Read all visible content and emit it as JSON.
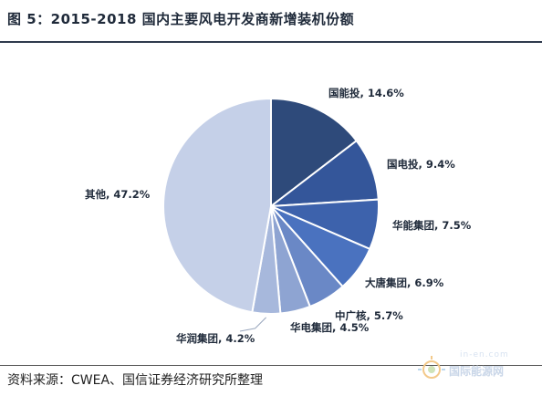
{
  "header": {
    "title": "图 5：2015-2018 国内主要风电开发商新增装机份额"
  },
  "footer": {
    "source": "资料来源：CWEA、国信证券经济研究所整理"
  },
  "watermark": {
    "text": "国际能源网",
    "sub": "in-en.com"
  },
  "chart_data": {
    "type": "pie",
    "title": "2015-2018 国内主要风电开发商新增装机份额",
    "start_angle_deg": 0,
    "direction": "clockwise",
    "slices": [
      {
        "label": "国能投",
        "value": 14.6,
        "display": "国能投, 14.6%",
        "color": "#2e4a7a"
      },
      {
        "label": "国电投",
        "value": 9.4,
        "display": "国电投, 9.4%",
        "color": "#34569a"
      },
      {
        "label": "华能集团",
        "value": 7.5,
        "display": "华能集团, 7.5%",
        "color": "#3d62ac"
      },
      {
        "label": "大唐集团",
        "value": 6.9,
        "display": "大唐集团, 6.9%",
        "color": "#4a72bf"
      },
      {
        "label": "中广核",
        "value": 5.7,
        "display": "中广核, 5.7%",
        "color": "#6a88c6"
      },
      {
        "label": "华电集团",
        "value": 4.5,
        "display": "华电集团, 4.5%",
        "color": "#8ea4d2"
      },
      {
        "label": "华润集团",
        "value": 4.2,
        "display": "华润集团, 4.2%",
        "color": "#a7b8dc"
      },
      {
        "label": "其他",
        "value": 47.2,
        "display": "其他, 47.2%",
        "color": "#c5d0e8"
      }
    ]
  }
}
